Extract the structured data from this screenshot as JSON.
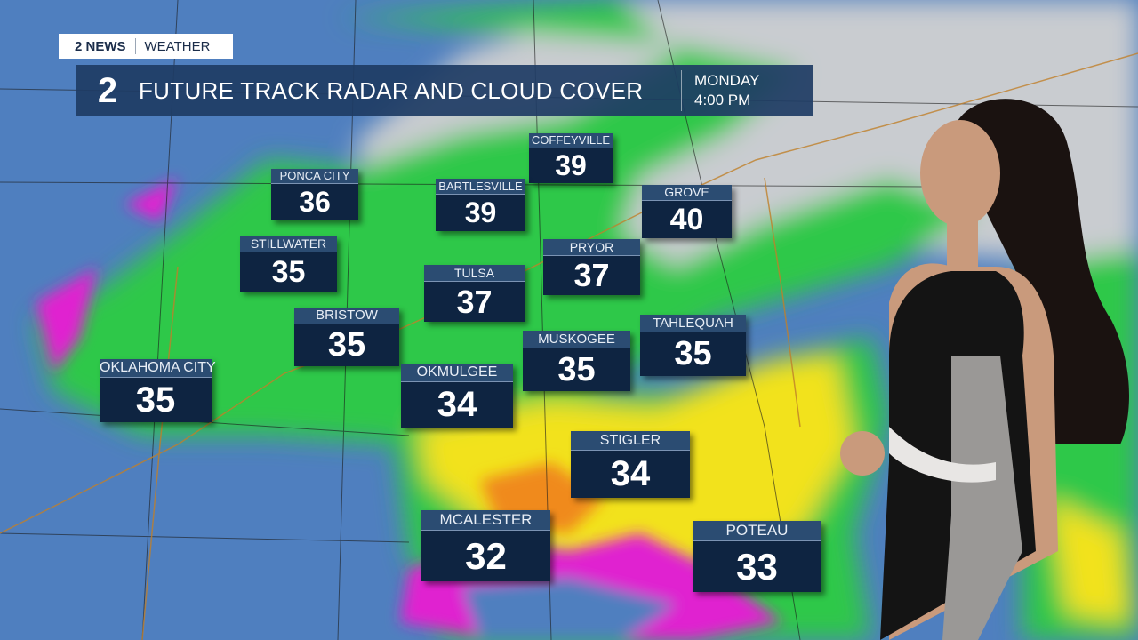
{
  "branding": {
    "station": "2 NEWS",
    "section": "WEATHER",
    "logo_number": "2"
  },
  "title_bar": {
    "title": "FUTURE TRACK RADAR AND CLOUD COVER",
    "day": "MONDAY",
    "time": "4:00 PM"
  },
  "colors": {
    "title_bar": "#1e3c64",
    "label_header": "#2b4c72",
    "label_body": "#0e2441",
    "rain_light": "#2ec84a",
    "rain_moderate": "#f2e21c",
    "rain_heavy": "#f08a1c",
    "snow": "#4f7fbf",
    "mix": "#e020d0",
    "cloud": "#c9ccd0"
  },
  "cities": [
    {
      "name": "PONCA CITY",
      "temp": "36"
    },
    {
      "name": "COFFEYVILLE",
      "temp": "39"
    },
    {
      "name": "BARTLESVILLE",
      "temp": "39"
    },
    {
      "name": "GROVE",
      "temp": "40"
    },
    {
      "name": "STILLWATER",
      "temp": "35"
    },
    {
      "name": "PRYOR",
      "temp": "37"
    },
    {
      "name": "TULSA",
      "temp": "37"
    },
    {
      "name": "BRISTOW",
      "temp": "35"
    },
    {
      "name": "TAHLEQUAH",
      "temp": "35"
    },
    {
      "name": "MUSKOGEE",
      "temp": "35"
    },
    {
      "name": "OKLAHOMA CITY",
      "temp": "35"
    },
    {
      "name": "OKMULGEE",
      "temp": "34"
    },
    {
      "name": "STIGLER",
      "temp": "34"
    },
    {
      "name": "MCALESTER",
      "temp": "32"
    },
    {
      "name": "POTEAU",
      "temp": "33"
    }
  ]
}
